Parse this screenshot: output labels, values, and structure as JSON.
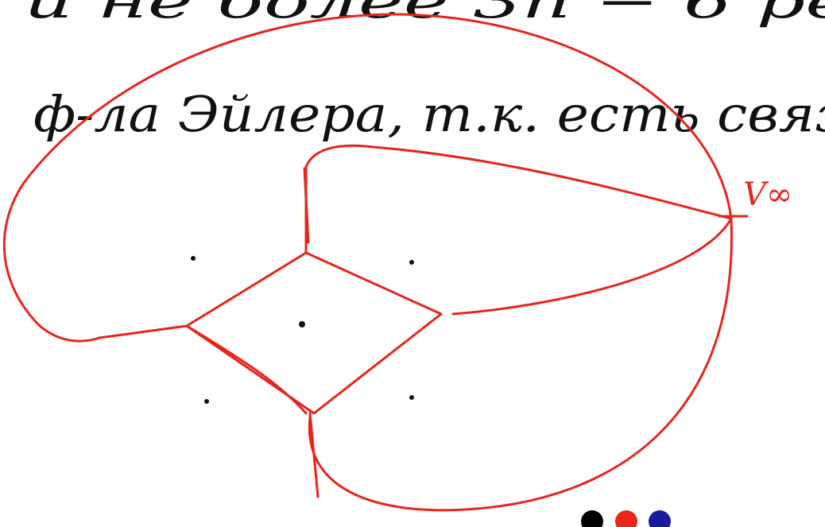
{
  "lines": [
    "и не более 3n − 6 ре",
    "ф-ла Эйлера, т.к. есть связ"
  ],
  "vertex_label": "V∞"
}
